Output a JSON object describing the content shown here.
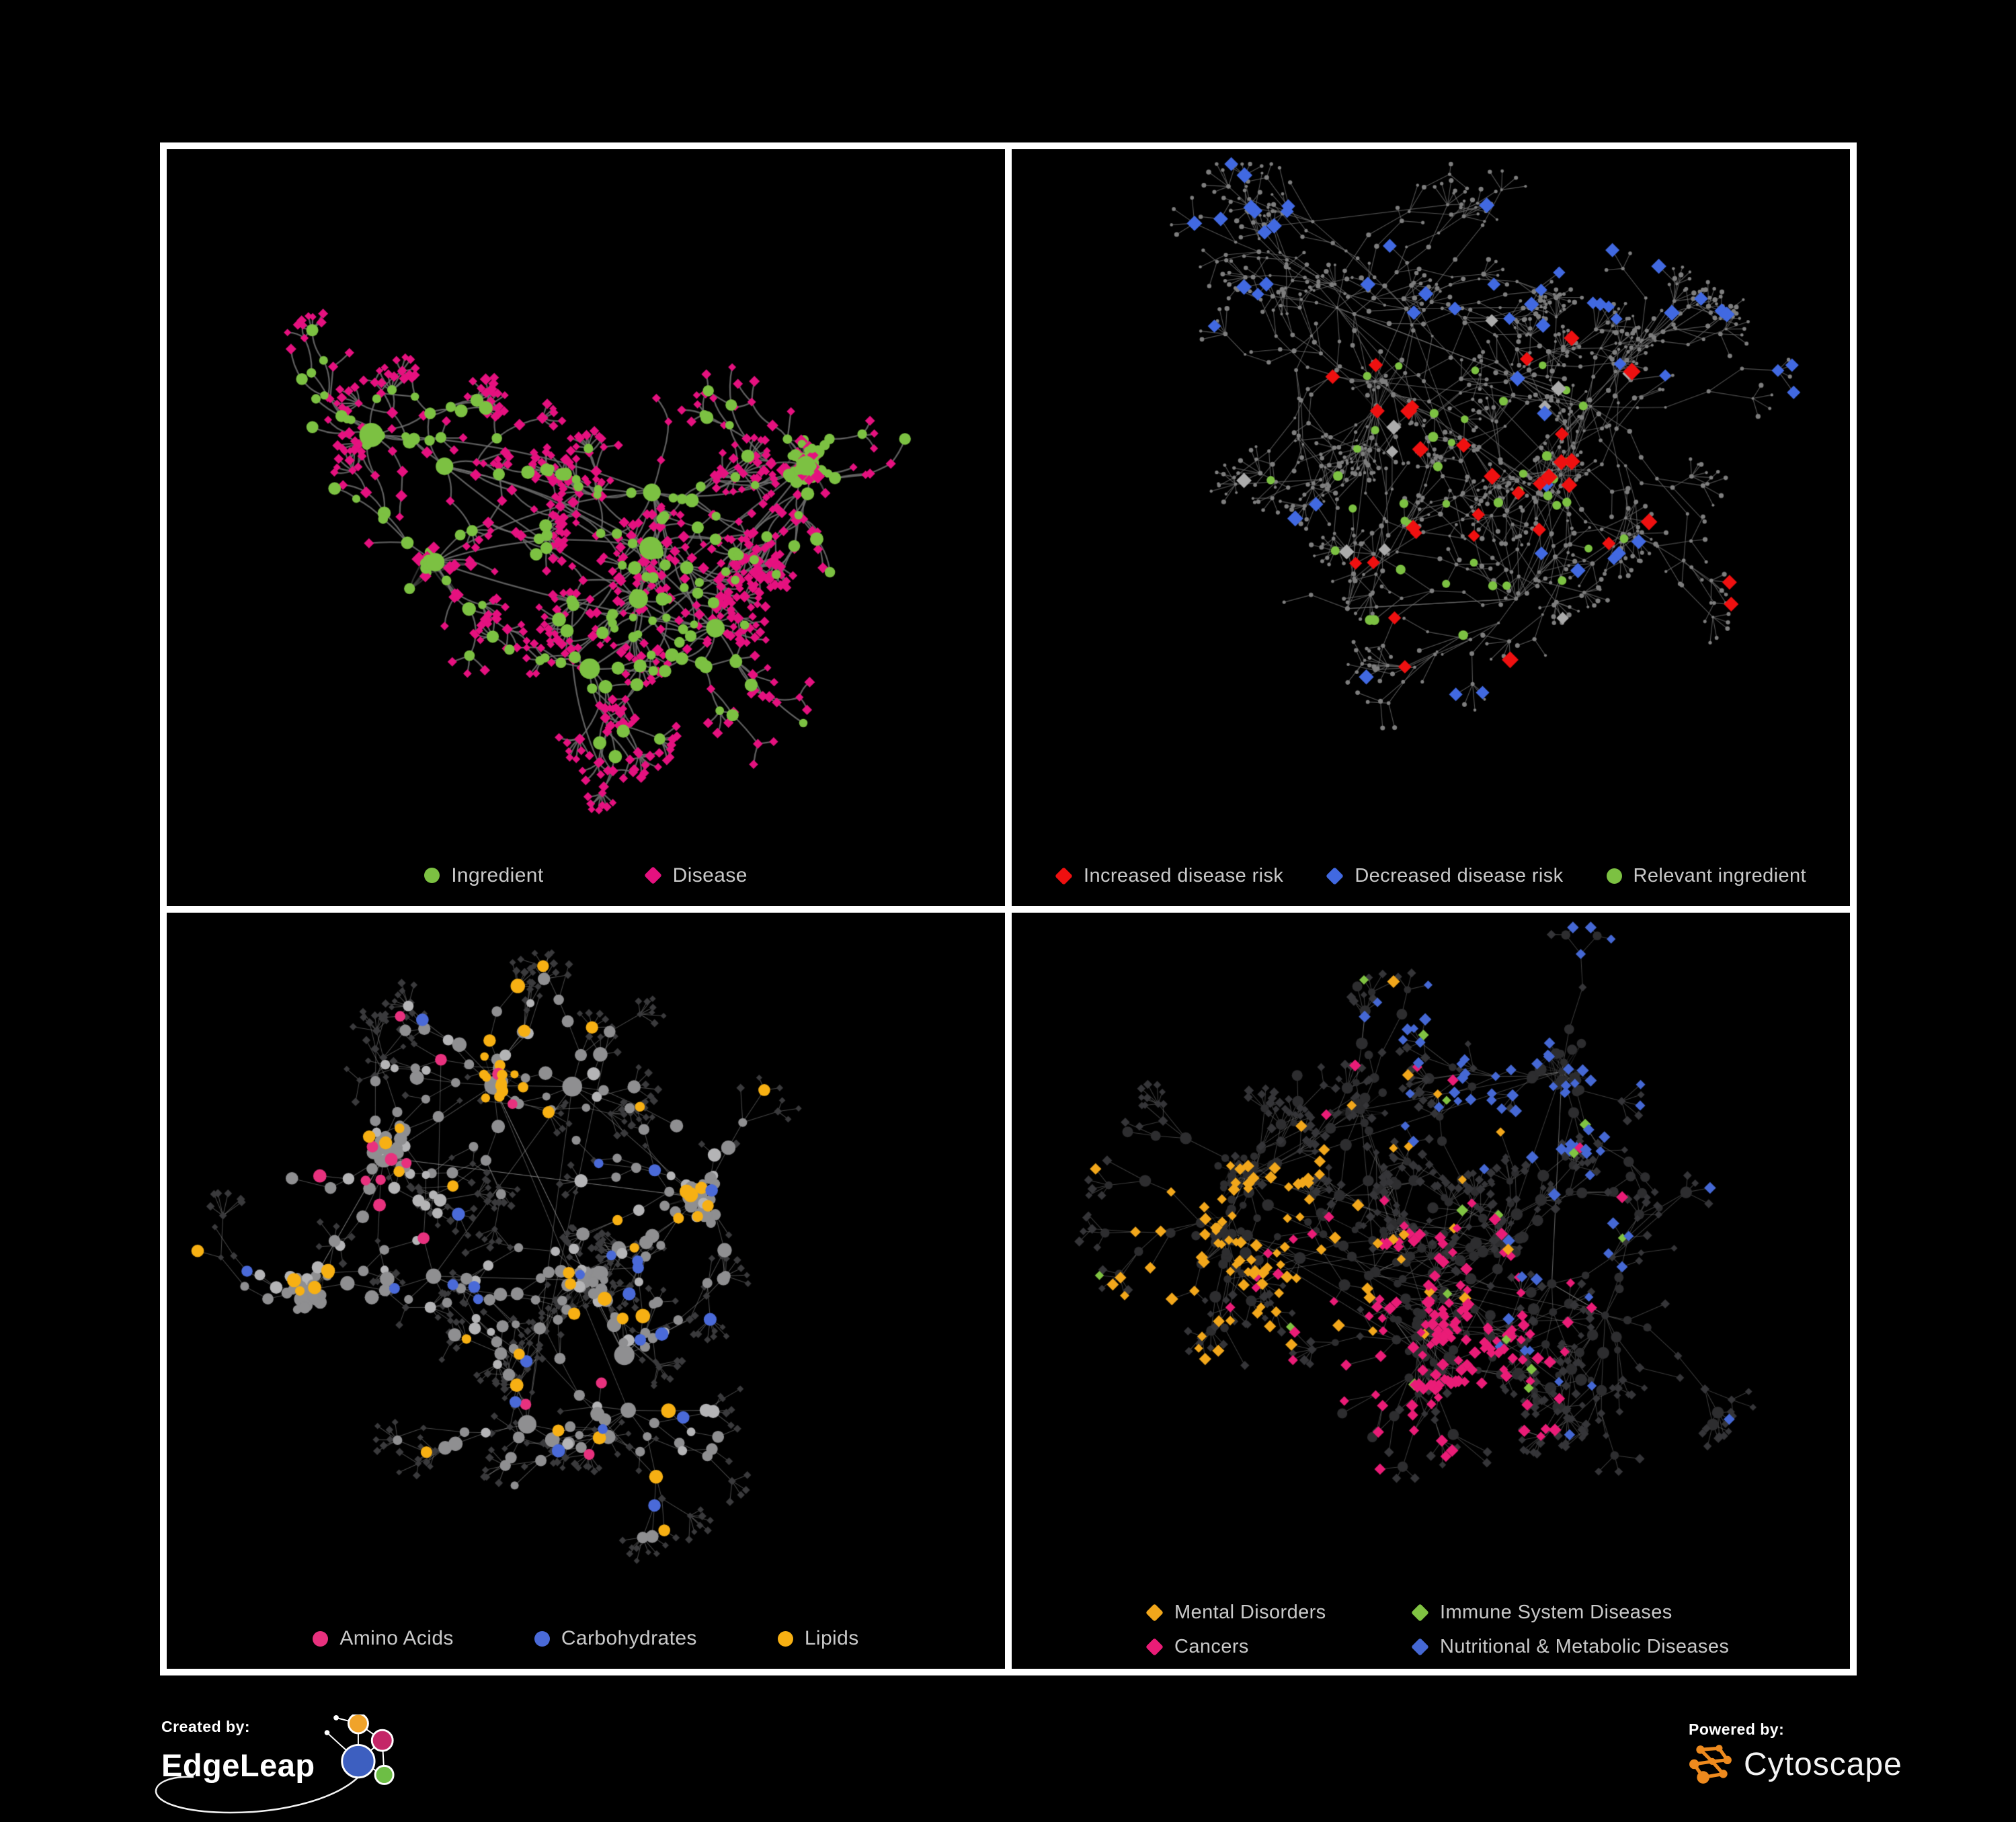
{
  "page": {
    "background": "#000000",
    "frame_color": "#ffffff",
    "legend_text_color": "#C9C9C9"
  },
  "footer": {
    "created_by": "Created by:",
    "brand_left": "EdgeLeap",
    "powered_by": "Powered by:",
    "brand_right": "Cytoscape",
    "cytoscape_orange": "#EE8A1E",
    "edgeleap_colors": {
      "orange": "#F0A32A",
      "magenta": "#C42667",
      "blue": "#3D5FC0",
      "green": "#6DBE45"
    }
  },
  "panels": [
    {
      "id": "ingredient-disease",
      "legend": [
        {
          "label": "Ingredient",
          "shape": "circle",
          "color": "#7CC142"
        },
        {
          "label": "Disease",
          "shape": "diamond",
          "color": "#E5117F"
        }
      ],
      "net": {
        "seed": 7,
        "hubs": 9,
        "rx": 430,
        "ry": 310,
        "len": 42,
        "maxDepth": 4,
        "nb0": 5,
        "nbv": 4,
        "fan": 0.55,
        "leafLen": 26,
        "clusters": 3,
        "clMin": 16,
        "clMax": 32,
        "cross": 10,
        "budget": 1250,
        "edge": {
          "color": "#6F6F6F",
          "width": 2.3,
          "alpha": 0.85,
          "curve": true
        },
        "style": {
          "type": "bipartite",
          "circle": "#7CC142",
          "diamond": "#E5117F"
        }
      }
    },
    {
      "id": "disease-risk",
      "legend": [
        {
          "label": "Increased disease risk",
          "shape": "diamond",
          "color": "#EF1010"
        },
        {
          "label": "Decreased disease risk",
          "shape": "diamond",
          "color": "#4169E1"
        },
        {
          "label": "Relevant ingredient",
          "shape": "circle",
          "color": "#7CC142"
        }
      ],
      "net": {
        "seed": 1013,
        "hubs": 11,
        "rx": 500,
        "ry": 360,
        "len": 50,
        "maxDepth": 5,
        "nb0": 4,
        "nbv": 5,
        "fan": 0.6,
        "leafLen": 30,
        "clusters": 2,
        "clMin": 10,
        "clMax": 18,
        "cross": 8,
        "budget": 1400,
        "edge": {
          "color": "#6C6C6C",
          "width": 1.15,
          "alpha": 0.75,
          "curve": false
        },
        "style": {
          "type": "risk",
          "base": "#7E7E7E",
          "red": "#EF1010",
          "blue": "#4169E1",
          "green": "#7CC142",
          "silver": "#ABABAB"
        }
      }
    },
    {
      "id": "nutrient-classes",
      "legend": [
        {
          "label": "Amino Acids",
          "shape": "circle",
          "color": "#E8317E"
        },
        {
          "label": "Carbohydrates",
          "shape": "circle",
          "color": "#4A6AD8"
        },
        {
          "label": "Lipids",
          "shape": "circle",
          "color": "#F7B013"
        }
      ],
      "net": {
        "seed": 5,
        "hubs": 10,
        "rx": 460,
        "ry": 330,
        "len": 45,
        "maxDepth": 4,
        "nb0": 4,
        "nbv": 4,
        "fan": 0.5,
        "leafLen": 27,
        "clusters": 5,
        "clMin": 14,
        "clMax": 30,
        "cross": 16,
        "budget": 1300,
        "edge": {
          "color": "#ABABAB",
          "width": 1.05,
          "alpha": 0.42,
          "curve": false
        },
        "style": {
          "type": "nutrients",
          "leaf": "#3A3A3C",
          "gray": "#8F8F91",
          "light": "#B4B4B6",
          "orange": "#F7B013",
          "pink": "#E8317E",
          "blue": "#4A6AD8"
        }
      }
    },
    {
      "id": "disease-categories",
      "legend": [
        {
          "label": "Mental Disorders",
          "shape": "diamond",
          "color": "#F2A71B"
        },
        {
          "label": "Immune System Diseases",
          "shape": "diamond",
          "color": "#80C342"
        },
        {
          "label": "Cancers",
          "shape": "diamond",
          "color": "#EA1C77"
        },
        {
          "label": "Nutritional & Metabolic Diseases",
          "shape": "diamond",
          "color": "#4568D4"
        }
      ],
      "net": {
        "seed": 77,
        "hubs": 11,
        "rx": 490,
        "ry": 350,
        "len": 47,
        "maxDepth": 4,
        "nb0": 4,
        "nbv": 5,
        "fan": 0.55,
        "leafLen": 28,
        "clusters": 6,
        "clMin": 16,
        "clMax": 34,
        "cross": 18,
        "budget": 1500,
        "edge": {
          "color": "#9E9E9E",
          "width": 1.05,
          "alpha": 0.38,
          "curve": false
        },
        "style": {
          "type": "taxonomy",
          "circle": "#2D2D2F",
          "dark": "#353538",
          "orange": "#F2A71B",
          "magenta": "#EA1C77",
          "blue": "#4568D4",
          "green": "#80C342"
        }
      }
    }
  ],
  "chart_data": [
    {
      "type": "network",
      "panel": "top-left",
      "title": "",
      "node_classes": [
        {
          "name": "Ingredient",
          "shape": "circle",
          "color": "#7CC142"
        },
        {
          "name": "Disease",
          "shape": "diamond",
          "color": "#E5117F"
        }
      ],
      "edge_color": "#6F6F6F",
      "background": "#000000",
      "legend_position": "bottom-center"
    },
    {
      "type": "network",
      "panel": "top-right",
      "title": "",
      "node_classes": [
        {
          "name": "Increased disease risk",
          "shape": "diamond",
          "color": "#EF1010"
        },
        {
          "name": "Decreased disease risk",
          "shape": "diamond",
          "color": "#4169E1"
        },
        {
          "name": "Relevant ingredient",
          "shape": "circle",
          "color": "#7CC142"
        },
        {
          "name": "other",
          "shape": "dot",
          "color": "#7E7E7E"
        }
      ],
      "edge_color": "#6C6C6C",
      "background": "#000000",
      "legend_position": "bottom-center"
    },
    {
      "type": "network",
      "panel": "bottom-left",
      "title": "",
      "node_classes": [
        {
          "name": "Amino Acids",
          "shape": "circle",
          "color": "#E8317E"
        },
        {
          "name": "Carbohydrates",
          "shape": "circle",
          "color": "#4A6AD8"
        },
        {
          "name": "Lipids",
          "shape": "circle",
          "color": "#F7B013"
        },
        {
          "name": "other ingredient",
          "shape": "circle",
          "color": "#8F8F91"
        },
        {
          "name": "disease",
          "shape": "diamond",
          "color": "#3A3A3C"
        }
      ],
      "edge_color": "#ABABAB",
      "background": "#000000",
      "legend_position": "bottom-center"
    },
    {
      "type": "network",
      "panel": "bottom-right",
      "title": "",
      "node_classes": [
        {
          "name": "Mental Disorders",
          "shape": "diamond",
          "color": "#F2A71B"
        },
        {
          "name": "Immune System Diseases",
          "shape": "diamond",
          "color": "#80C342"
        },
        {
          "name": "Cancers",
          "shape": "diamond",
          "color": "#EA1C77"
        },
        {
          "name": "Nutritional & Metabolic Diseases",
          "shape": "diamond",
          "color": "#4568D4"
        },
        {
          "name": "other disease",
          "shape": "diamond",
          "color": "#353538"
        },
        {
          "name": "ingredient",
          "shape": "circle",
          "color": "#2D2D2F"
        }
      ],
      "edge_color": "#9E9E9E",
      "background": "#000000",
      "legend_position": "bottom-center"
    }
  ]
}
